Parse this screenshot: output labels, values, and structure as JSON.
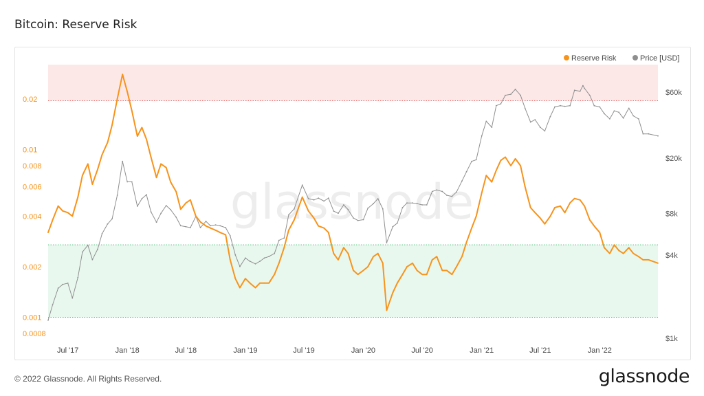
{
  "title": "Bitcoin: Reserve Risk",
  "footer": "© 2022 Glassnode. All Rights Reserved.",
  "brand": "glassnode",
  "watermark": "glassnode",
  "colors": {
    "reserve_risk": "#f7931a",
    "price": "#8f8f8f",
    "red_zone": "#fde8e8",
    "green_zone": "#e9f8ef",
    "red_line": "#e26a6a",
    "green_line": "#4fbf7a"
  },
  "chart_data": {
    "type": "line",
    "title": "Bitcoin: Reserve Risk",
    "legend": {
      "placement": "top-right",
      "entries": [
        "Reserve Risk",
        "Price [USD]"
      ]
    },
    "grid": false,
    "x_ticks": [
      "Jul '17",
      "Jan '18",
      "Jul '18",
      "Jan '19",
      "Jul '19",
      "Jan '20",
      "Jul '20",
      "Jan '21",
      "Jul '21",
      "Jan '22"
    ],
    "x_range": [
      "2017-05-01",
      "2022-06-30"
    ],
    "y_left": {
      "scale": "log",
      "range": [
        0.00075,
        0.032
      ],
      "ticks": [
        "0.0008",
        "0.001",
        "0.002",
        "0.004",
        "0.006",
        "0.008",
        "0.01",
        "0.02"
      ]
    },
    "y_right": {
      "scale": "log",
      "range": [
        1000,
        95000
      ],
      "ticks": [
        "$1k",
        "$4k",
        "$8k",
        "$20k",
        "$60k"
      ]
    },
    "zones": [
      {
        "name": "high-risk",
        "from": 0.0195,
        "to": 0.032
      },
      {
        "name": "low-risk",
        "from": 0.001,
        "to": 0.0027
      }
    ],
    "series": [
      {
        "name": "Reserve Risk",
        "axis": "left",
        "points": [
          [
            "2017-05-01",
            0.0032
          ],
          [
            "2017-05-15",
            0.0038
          ],
          [
            "2017-06-01",
            0.0046
          ],
          [
            "2017-06-15",
            0.0043
          ],
          [
            "2017-07-01",
            0.0042
          ],
          [
            "2017-07-15",
            0.004
          ],
          [
            "2017-08-01",
            0.0052
          ],
          [
            "2017-08-15",
            0.007
          ],
          [
            "2017-09-01",
            0.0082
          ],
          [
            "2017-09-15",
            0.0062
          ],
          [
            "2017-10-01",
            0.0076
          ],
          [
            "2017-10-15",
            0.0093
          ],
          [
            "2017-11-01",
            0.011
          ],
          [
            "2017-11-15",
            0.014
          ],
          [
            "2017-12-01",
            0.02
          ],
          [
            "2017-12-17",
            0.028
          ],
          [
            "2018-01-01",
            0.022
          ],
          [
            "2018-01-15",
            0.017
          ],
          [
            "2018-02-01",
            0.012
          ],
          [
            "2018-02-15",
            0.0135
          ],
          [
            "2018-03-01",
            0.0115
          ],
          [
            "2018-03-15",
            0.009
          ],
          [
            "2018-04-01",
            0.0068
          ],
          [
            "2018-04-15",
            0.0082
          ],
          [
            "2018-05-01",
            0.0078
          ],
          [
            "2018-05-15",
            0.0064
          ],
          [
            "2018-06-01",
            0.0056
          ],
          [
            "2018-06-15",
            0.0044
          ],
          [
            "2018-07-01",
            0.0048
          ],
          [
            "2018-07-15",
            0.005
          ],
          [
            "2018-08-01",
            0.004
          ],
          [
            "2018-08-15",
            0.0037
          ],
          [
            "2018-09-01",
            0.0035
          ],
          [
            "2018-09-15",
            0.0034
          ],
          [
            "2018-10-01",
            0.0033
          ],
          [
            "2018-10-15",
            0.0032
          ],
          [
            "2018-11-01",
            0.0031
          ],
          [
            "2018-11-15",
            0.0022
          ],
          [
            "2018-12-01",
            0.0017
          ],
          [
            "2018-12-15",
            0.0015
          ],
          [
            "2019-01-01",
            0.0017
          ],
          [
            "2019-01-15",
            0.0016
          ],
          [
            "2019-02-01",
            0.0015
          ],
          [
            "2019-02-15",
            0.0016
          ],
          [
            "2019-03-01",
            0.0016
          ],
          [
            "2019-03-15",
            0.0016
          ],
          [
            "2019-04-01",
            0.0018
          ],
          [
            "2019-04-15",
            0.0021
          ],
          [
            "2019-05-01",
            0.0026
          ],
          [
            "2019-05-15",
            0.0033
          ],
          [
            "2019-06-01",
            0.0038
          ],
          [
            "2019-06-26",
            0.0052
          ],
          [
            "2019-07-15",
            0.0043
          ],
          [
            "2019-08-01",
            0.0039
          ],
          [
            "2019-08-15",
            0.0035
          ],
          [
            "2019-09-01",
            0.0034
          ],
          [
            "2019-09-15",
            0.0032
          ],
          [
            "2019-10-01",
            0.0024
          ],
          [
            "2019-10-15",
            0.0022
          ],
          [
            "2019-11-01",
            0.0026
          ],
          [
            "2019-11-15",
            0.0024
          ],
          [
            "2019-12-01",
            0.0019
          ],
          [
            "2019-12-15",
            0.0018
          ],
          [
            "2020-01-01",
            0.0019
          ],
          [
            "2020-01-15",
            0.002
          ],
          [
            "2020-02-01",
            0.0023
          ],
          [
            "2020-02-15",
            0.0024
          ],
          [
            "2020-03-01",
            0.0021
          ],
          [
            "2020-03-13",
            0.0011
          ],
          [
            "2020-04-01",
            0.0014
          ],
          [
            "2020-04-15",
            0.0016
          ],
          [
            "2020-05-01",
            0.0018
          ],
          [
            "2020-05-15",
            0.002
          ],
          [
            "2020-06-01",
            0.0021
          ],
          [
            "2020-06-15",
            0.0019
          ],
          [
            "2020-07-01",
            0.0018
          ],
          [
            "2020-07-15",
            0.0018
          ],
          [
            "2020-08-01",
            0.0022
          ],
          [
            "2020-08-15",
            0.0023
          ],
          [
            "2020-09-01",
            0.0019
          ],
          [
            "2020-09-15",
            0.0019
          ],
          [
            "2020-10-01",
            0.0018
          ],
          [
            "2020-10-15",
            0.002
          ],
          [
            "2020-11-01",
            0.0023
          ],
          [
            "2020-11-15",
            0.0028
          ],
          [
            "2020-12-01",
            0.0034
          ],
          [
            "2020-12-15",
            0.004
          ],
          [
            "2021-01-01",
            0.0055
          ],
          [
            "2021-01-15",
            0.007
          ],
          [
            "2021-02-01",
            0.0064
          ],
          [
            "2021-02-15",
            0.0075
          ],
          [
            "2021-03-01",
            0.0086
          ],
          [
            "2021-03-15",
            0.009
          ],
          [
            "2021-04-01",
            0.008
          ],
          [
            "2021-04-15",
            0.0088
          ],
          [
            "2021-05-01",
            0.008
          ],
          [
            "2021-05-15",
            0.006
          ],
          [
            "2021-06-01",
            0.0045
          ],
          [
            "2021-06-15",
            0.0042
          ],
          [
            "2021-07-01",
            0.0039
          ],
          [
            "2021-07-15",
            0.0036
          ],
          [
            "2021-08-01",
            0.004
          ],
          [
            "2021-08-15",
            0.0045
          ],
          [
            "2021-09-01",
            0.0046
          ],
          [
            "2021-09-15",
            0.0042
          ],
          [
            "2021-10-01",
            0.0048
          ],
          [
            "2021-10-15",
            0.0051
          ],
          [
            "2021-11-01",
            0.005
          ],
          [
            "2021-11-15",
            0.0046
          ],
          [
            "2021-12-01",
            0.0038
          ],
          [
            "2021-12-15",
            0.0035
          ],
          [
            "2022-01-01",
            0.0032
          ],
          [
            "2022-01-15",
            0.0026
          ],
          [
            "2022-02-01",
            0.0024
          ],
          [
            "2022-02-15",
            0.0027
          ],
          [
            "2022-03-01",
            0.0025
          ],
          [
            "2022-03-15",
            0.0024
          ],
          [
            "2022-04-01",
            0.0026
          ],
          [
            "2022-04-15",
            0.0024
          ],
          [
            "2022-05-01",
            0.0023
          ],
          [
            "2022-05-15",
            0.0022
          ],
          [
            "2022-06-01",
            0.0022
          ],
          [
            "2022-06-30",
            0.0021
          ]
        ]
      },
      {
        "name": "Price [USD]",
        "axis": "right",
        "points": [
          [
            "2017-05-01",
            1350
          ],
          [
            "2017-05-15",
            1750
          ],
          [
            "2017-06-01",
            2300
          ],
          [
            "2017-06-15",
            2450
          ],
          [
            "2017-07-01",
            2500
          ],
          [
            "2017-07-15",
            1950
          ],
          [
            "2017-08-01",
            2750
          ],
          [
            "2017-08-15",
            4200
          ],
          [
            "2017-09-01",
            4700
          ],
          [
            "2017-09-15",
            3700
          ],
          [
            "2017-10-01",
            4400
          ],
          [
            "2017-10-15",
            5700
          ],
          [
            "2017-11-01",
            6700
          ],
          [
            "2017-11-15",
            7300
          ],
          [
            "2017-12-01",
            10800
          ],
          [
            "2017-12-17",
            19000
          ],
          [
            "2018-01-01",
            13500
          ],
          [
            "2018-01-15",
            13500
          ],
          [
            "2018-02-01",
            9000
          ],
          [
            "2018-02-15",
            10200
          ],
          [
            "2018-03-01",
            10900
          ],
          [
            "2018-03-15",
            8200
          ],
          [
            "2018-04-01",
            6900
          ],
          [
            "2018-04-15",
            8000
          ],
          [
            "2018-05-01",
            9100
          ],
          [
            "2018-05-15",
            8500
          ],
          [
            "2018-06-01",
            7500
          ],
          [
            "2018-06-15",
            6500
          ],
          [
            "2018-07-01",
            6400
          ],
          [
            "2018-07-15",
            6300
          ],
          [
            "2018-08-01",
            7600
          ],
          [
            "2018-08-15",
            6300
          ],
          [
            "2018-09-01",
            7000
          ],
          [
            "2018-09-15",
            6500
          ],
          [
            "2018-10-01",
            6600
          ],
          [
            "2018-10-15",
            6500
          ],
          [
            "2018-11-01",
            6300
          ],
          [
            "2018-11-15",
            5500
          ],
          [
            "2018-12-01",
            4000
          ],
          [
            "2018-12-15",
            3300
          ],
          [
            "2019-01-01",
            3800
          ],
          [
            "2019-01-15",
            3600
          ],
          [
            "2019-02-01",
            3450
          ],
          [
            "2019-02-15",
            3600
          ],
          [
            "2019-03-01",
            3800
          ],
          [
            "2019-03-15",
            3900
          ],
          [
            "2019-04-01",
            4100
          ],
          [
            "2019-04-15",
            5100
          ],
          [
            "2019-05-01",
            5300
          ],
          [
            "2019-05-15",
            7800
          ],
          [
            "2019-06-01",
            8600
          ],
          [
            "2019-06-26",
            12800
          ],
          [
            "2019-07-15",
            10200
          ],
          [
            "2019-08-01",
            10000
          ],
          [
            "2019-08-15",
            10300
          ],
          [
            "2019-09-01",
            9800
          ],
          [
            "2019-09-15",
            10300
          ],
          [
            "2019-10-01",
            8300
          ],
          [
            "2019-10-15",
            8000
          ],
          [
            "2019-11-01",
            9200
          ],
          [
            "2019-11-15",
            8500
          ],
          [
            "2019-12-01",
            7400
          ],
          [
            "2019-12-15",
            7100
          ],
          [
            "2020-01-01",
            7200
          ],
          [
            "2020-01-15",
            8700
          ],
          [
            "2020-02-01",
            9400
          ],
          [
            "2020-02-15",
            10200
          ],
          [
            "2020-03-01",
            8600
          ],
          [
            "2020-03-13",
            4900
          ],
          [
            "2020-04-01",
            6400
          ],
          [
            "2020-04-15",
            6800
          ],
          [
            "2020-05-01",
            8800
          ],
          [
            "2020-05-15",
            9500
          ],
          [
            "2020-06-01",
            9500
          ],
          [
            "2020-06-15",
            9400
          ],
          [
            "2020-07-01",
            9200
          ],
          [
            "2020-07-15",
            9200
          ],
          [
            "2020-08-01",
            11500
          ],
          [
            "2020-08-15",
            11800
          ],
          [
            "2020-09-01",
            11500
          ],
          [
            "2020-09-15",
            10800
          ],
          [
            "2020-10-01",
            10600
          ],
          [
            "2020-10-15",
            11400
          ],
          [
            "2020-11-01",
            13700
          ],
          [
            "2020-11-15",
            16000
          ],
          [
            "2020-12-01",
            19000
          ],
          [
            "2020-12-15",
            19500
          ],
          [
            "2021-01-01",
            29000
          ],
          [
            "2021-01-15",
            37000
          ],
          [
            "2021-02-01",
            33500
          ],
          [
            "2021-02-15",
            48000
          ],
          [
            "2021-03-01",
            49500
          ],
          [
            "2021-03-15",
            57000
          ],
          [
            "2021-04-01",
            58000
          ],
          [
            "2021-04-15",
            63000
          ],
          [
            "2021-05-01",
            57000
          ],
          [
            "2021-05-15",
            46000
          ],
          [
            "2021-06-01",
            36500
          ],
          [
            "2021-06-15",
            38000
          ],
          [
            "2021-07-01",
            33500
          ],
          [
            "2021-07-15",
            31500
          ],
          [
            "2021-08-01",
            40000
          ],
          [
            "2021-08-15",
            47000
          ],
          [
            "2021-09-01",
            48000
          ],
          [
            "2021-09-15",
            47500
          ],
          [
            "2021-10-01",
            48000
          ],
          [
            "2021-10-15",
            62000
          ],
          [
            "2021-11-01",
            61000
          ],
          [
            "2021-11-10",
            67000
          ],
          [
            "2021-11-15",
            64000
          ],
          [
            "2021-12-01",
            57000
          ],
          [
            "2021-12-15",
            48000
          ],
          [
            "2022-01-01",
            47000
          ],
          [
            "2022-01-15",
            42000
          ],
          [
            "2022-02-01",
            38500
          ],
          [
            "2022-02-15",
            44000
          ],
          [
            "2022-03-01",
            43000
          ],
          [
            "2022-03-15",
            39000
          ],
          [
            "2022-04-01",
            46000
          ],
          [
            "2022-04-15",
            40500
          ],
          [
            "2022-05-01",
            38500
          ],
          [
            "2022-05-15",
            30000
          ],
          [
            "2022-06-01",
            30000
          ],
          [
            "2022-06-30",
            29000
          ]
        ]
      }
    ]
  }
}
